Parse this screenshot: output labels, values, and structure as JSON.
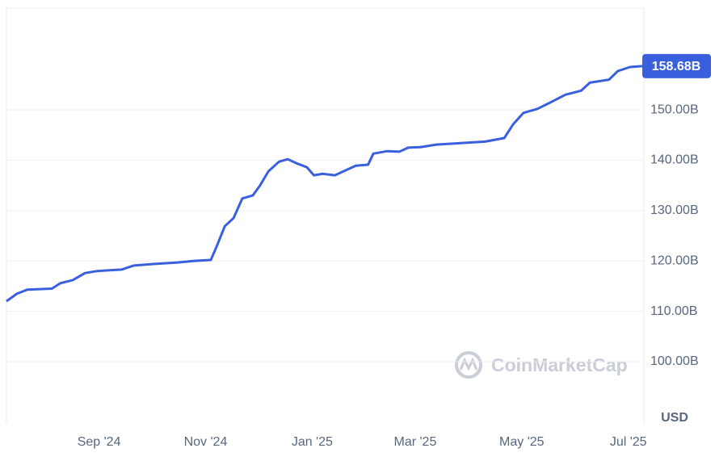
{
  "chart_data": {
    "type": "line",
    "x": [
      0,
      6,
      12,
      26,
      31,
      38,
      45,
      52,
      66,
      73,
      84,
      98,
      107,
      117,
      120,
      125,
      130,
      135,
      141,
      145,
      150,
      156,
      161,
      166,
      172,
      176,
      181,
      188,
      193,
      200,
      207,
      210,
      218,
      225,
      230,
      237,
      246,
      260,
      274,
      285,
      290,
      296,
      304,
      311,
      320,
      329,
      334,
      345,
      350,
      357,
      364
    ],
    "series": [
      {
        "name": "USD",
        "color": "#3a5fdd",
        "values": [
          112.0,
          113.5,
          114.3,
          114.5,
          115.6,
          116.2,
          117.6,
          118.0,
          118.3,
          119.1,
          119.4,
          119.7,
          120.0,
          120.2,
          122.6,
          126.9,
          128.5,
          132.4,
          133.0,
          134.9,
          137.8,
          139.7,
          140.2,
          139.4,
          138.6,
          137.0,
          137.3,
          137.0,
          137.8,
          138.9,
          139.1,
          141.3,
          141.8,
          141.7,
          142.5,
          142.6,
          143.1,
          143.4,
          143.7,
          144.4,
          147.1,
          149.4,
          150.2,
          151.4,
          153.0,
          153.8,
          155.4,
          156.0,
          157.7,
          158.5,
          158.68
        ],
        "value_labels": [
          null,
          null,
          null,
          null,
          null,
          null,
          null,
          null,
          null,
          null,
          null,
          null,
          null,
          null,
          null,
          null,
          null,
          null,
          null,
          null,
          null,
          null,
          null,
          null,
          null,
          null,
          null,
          null,
          null,
          null,
          null,
          null,
          null,
          null,
          null,
          null,
          null,
          null,
          null,
          null,
          null,
          null,
          null,
          null,
          null,
          null,
          null,
          null,
          null,
          null,
          "158.68B"
        ]
      }
    ],
    "xlim": [
      0,
      364
    ],
    "xticks": [
      {
        "value": 53,
        "label": "Sep '24"
      },
      {
        "value": 114,
        "label": "Nov '24"
      },
      {
        "value": 175,
        "label": "Jan '25"
      },
      {
        "value": 234,
        "label": "Mar '25"
      },
      {
        "value": 295,
        "label": "May '25"
      },
      {
        "value": 356,
        "label": "Jul '25"
      }
    ],
    "ylim": [
      87.66,
      170.2
    ],
    "yticks": [
      {
        "value": 100,
        "label": "100.00B"
      },
      {
        "value": 110,
        "label": "110.00B"
      },
      {
        "value": 120,
        "label": "120.00B"
      },
      {
        "value": 130,
        "label": "130.00B"
      },
      {
        "value": 140,
        "label": "140.00B"
      },
      {
        "value": 150,
        "label": "150.00B"
      }
    ],
    "y_axis_label": "USD",
    "watermark": "CoinMarketCap",
    "grid": true
  }
}
